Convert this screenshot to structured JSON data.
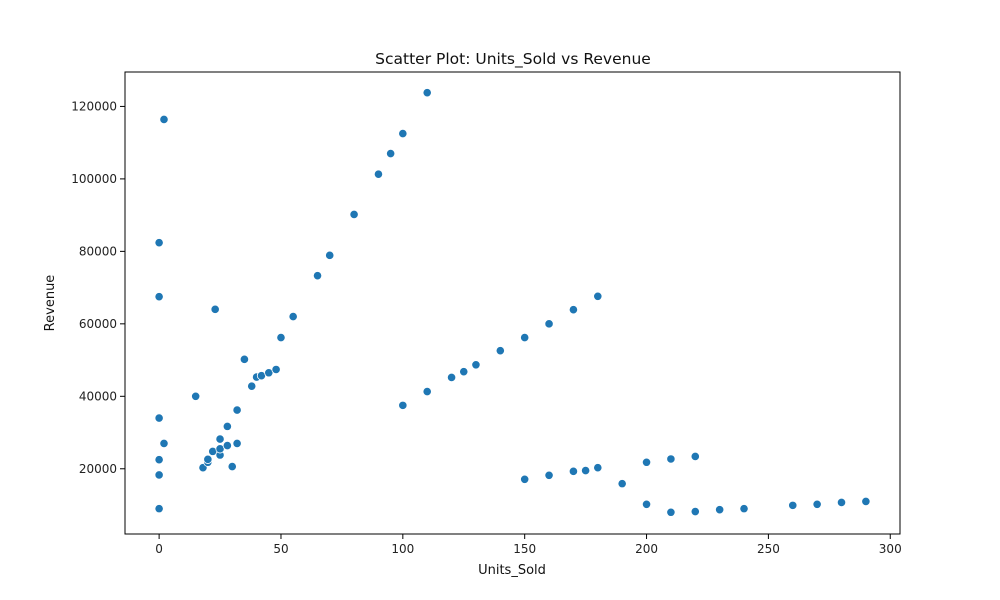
{
  "chart_data": {
    "type": "scatter",
    "title": "Scatter Plot: Units_Sold vs Revenue",
    "xlabel": "Units_Sold",
    "ylabel": "Revenue",
    "xlim": [
      -14,
      304
    ],
    "ylim": [
      2000,
      129500
    ],
    "xticks": [
      0,
      50,
      100,
      150,
      200,
      250,
      300
    ],
    "yticks": [
      20000,
      40000,
      60000,
      80000,
      100000,
      120000
    ],
    "grid": false,
    "marker_color": "#1f77b4",
    "series": [
      {
        "points": [
          [
            0,
            9000
          ],
          [
            0,
            18300
          ],
          [
            0,
            22500
          ],
          [
            0,
            34000
          ],
          [
            0,
            67500
          ],
          [
            0,
            82400
          ],
          [
            2,
            27000
          ],
          [
            2,
            116400
          ],
          [
            15,
            40000
          ],
          [
            18,
            20300
          ],
          [
            20,
            21800
          ],
          [
            20,
            22600
          ],
          [
            22,
            24800
          ],
          [
            23,
            64000
          ],
          [
            25,
            23800
          ],
          [
            25,
            25500
          ],
          [
            25,
            28200
          ],
          [
            28,
            26400
          ],
          [
            28,
            31700
          ],
          [
            30,
            20600
          ],
          [
            32,
            27000
          ],
          [
            32,
            36200
          ],
          [
            35,
            50200
          ],
          [
            38,
            42800
          ],
          [
            40,
            45300
          ],
          [
            42,
            45700
          ],
          [
            45,
            46500
          ],
          [
            48,
            47400
          ],
          [
            50,
            56200
          ],
          [
            55,
            62000
          ],
          [
            65,
            73300
          ],
          [
            70,
            78900
          ],
          [
            80,
            90200
          ],
          [
            90,
            101300
          ],
          [
            95,
            107000
          ],
          [
            100,
            112500
          ],
          [
            110,
            123800
          ],
          [
            100,
            37500
          ],
          [
            110,
            41300
          ],
          [
            120,
            45200
          ],
          [
            125,
            46800
          ],
          [
            130,
            48700
          ],
          [
            140,
            52600
          ],
          [
            150,
            56200
          ],
          [
            160,
            60000
          ],
          [
            170,
            63900
          ],
          [
            180,
            67600
          ],
          [
            150,
            17100
          ],
          [
            160,
            18200
          ],
          [
            170,
            19300
          ],
          [
            175,
            19500
          ],
          [
            180,
            20300
          ],
          [
            190,
            15900
          ],
          [
            200,
            21800
          ],
          [
            210,
            22700
          ],
          [
            220,
            23400
          ],
          [
            200,
            10200
          ],
          [
            210,
            8000
          ],
          [
            220,
            8200
          ],
          [
            230,
            8700
          ],
          [
            240,
            9000
          ],
          [
            260,
            9900
          ],
          [
            270,
            10200
          ],
          [
            280,
            10700
          ],
          [
            290,
            11000
          ]
        ]
      }
    ]
  }
}
